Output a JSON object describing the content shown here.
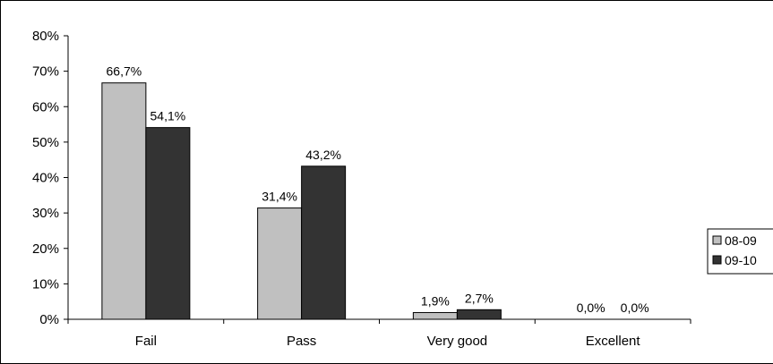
{
  "chart_data": {
    "type": "bar",
    "categories": [
      "Fail",
      "Pass",
      "Very good",
      "Excellent"
    ],
    "series": [
      {
        "name": "08-09",
        "values": [
          66.7,
          31.4,
          1.9,
          0.0
        ],
        "labels": [
          "66,7%",
          "31,4%",
          "1,9%",
          "0,0%"
        ],
        "color": "#c0c0c0"
      },
      {
        "name": "09-10",
        "values": [
          54.1,
          43.2,
          2.7,
          0.0
        ],
        "labels": [
          "54,1%",
          "43,2%",
          "2,7%",
          "0,0%"
        ],
        "color": "#333333"
      }
    ],
    "ylim": [
      0,
      80
    ],
    "yticks": [
      0,
      10,
      20,
      30,
      40,
      50,
      60,
      70,
      80
    ],
    "ytick_labels": [
      "0%",
      "10%",
      "20%",
      "30%",
      "40%",
      "50%",
      "60%",
      "70%",
      "80%"
    ],
    "grid": false,
    "legend_position": "right",
    "title": "",
    "xlabel": "",
    "ylabel": ""
  }
}
